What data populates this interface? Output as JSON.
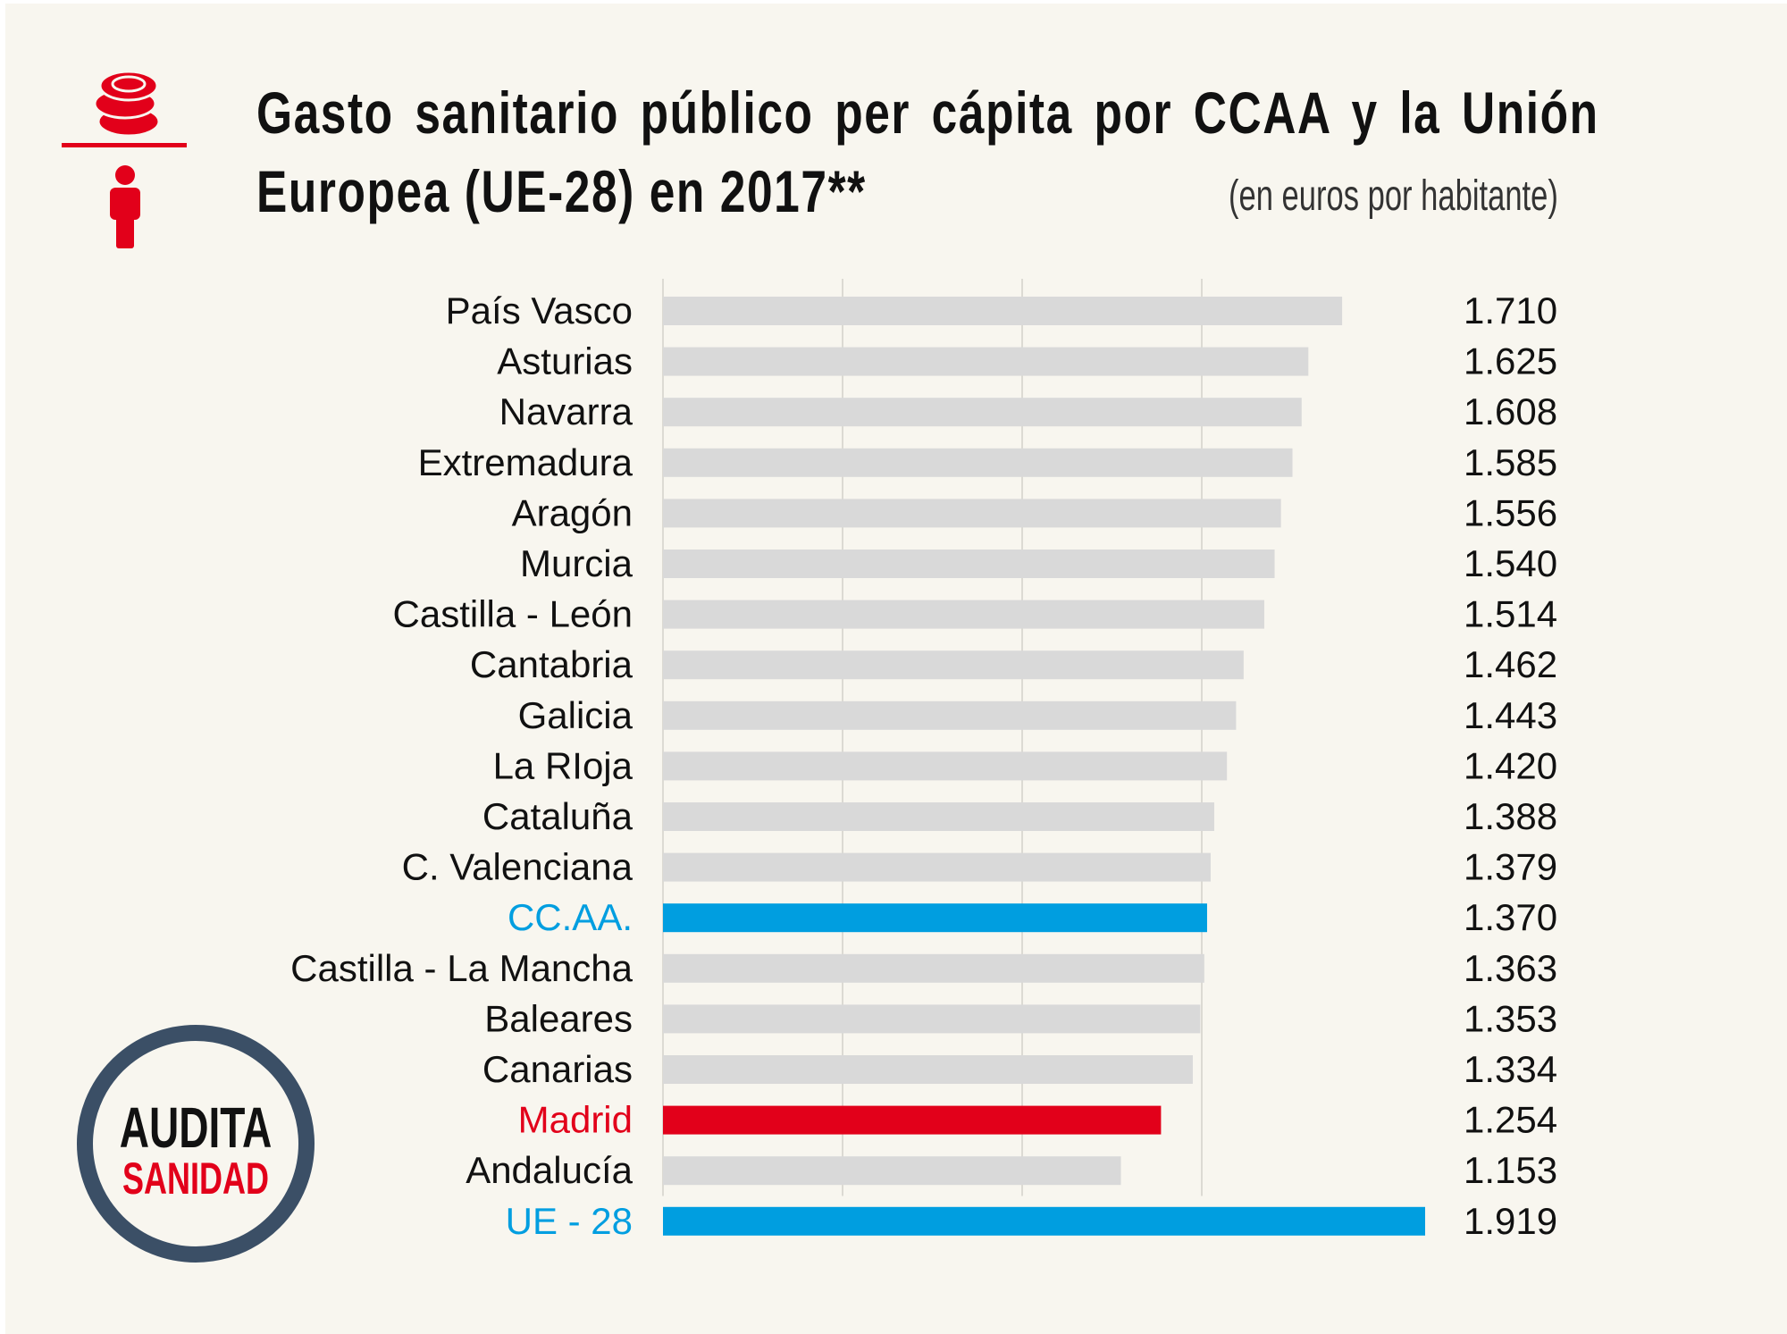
{
  "title_line1": "Gasto sanitario público per cápita por CCAA  y la Unión",
  "title_line2": "Europea (UE-28) en 2017**",
  "subtitle": "(en euros por habitante)",
  "logo": {
    "line1": "AUDITA",
    "line2": "SANIDAD"
  },
  "icons": [
    "coins-icon",
    "person-icon"
  ],
  "colors": {
    "default": "#d9d9d9",
    "average": "#009ee0",
    "highlight": "#e2001a",
    "label_default": "#111111",
    "accent_icon": "#e2001a",
    "logo_ring": "#3b4f66"
  },
  "chart_data": {
    "type": "bar",
    "orientation": "horizontal",
    "title": "Gasto sanitario público per cápita por CCAA  y la Unión Europea (UE-28) en 2017**",
    "subtitle": "(en euros por habitante)",
    "xlim": [
      0,
      1919
    ],
    "grid": true,
    "categories": [
      "País Vasco",
      "Asturias",
      "Navarra",
      "Extremadura",
      "Aragón",
      "Murcia",
      "Castilla - León",
      "Cantabria",
      "Galicia",
      "La RIoja",
      "Cataluña",
      "C. Valenciana",
      "CC.AA.",
      "Castilla - La Mancha",
      "Baleares",
      "Canarias",
      "Madrid",
      "Andalucía",
      "UE - 28"
    ],
    "values": [
      1710,
      1625,
      1608,
      1585,
      1556,
      1540,
      1514,
      1462,
      1443,
      1420,
      1388,
      1379,
      1370,
      1363,
      1353,
      1334,
      1254,
      1153,
      1919
    ],
    "value_labels": [
      "1.710",
      "1.625",
      "1.608",
      "1.585",
      "1.556",
      "1.540",
      "1.514",
      "1.462",
      "1.443",
      "1.420",
      "1.388",
      "1.379",
      "1.370",
      "1.363",
      "1.353",
      "1.334",
      "1.254",
      "1.153",
      "1.919"
    ],
    "highlight": {
      "CC.AA.": "average",
      "Madrid": "highlight",
      "UE - 28": "average"
    }
  }
}
